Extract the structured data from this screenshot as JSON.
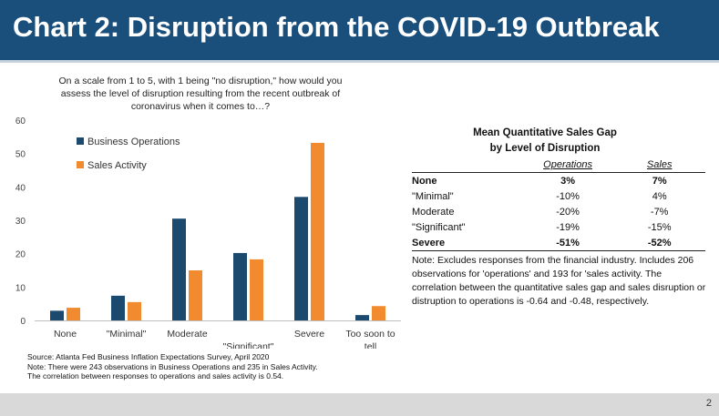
{
  "header": {
    "title": "Chart 2: Disruption from the COVID-19 Outbreak"
  },
  "colors": {
    "banner": "#1a4f7c",
    "operations": "#1b4a6e",
    "sales": "#f28b30"
  },
  "chart_data": {
    "type": "bar",
    "title": "On a scale from 1 to 5, with 1 being \"no disruption,\" how would you assess the level of disruption resulting from the recent outbreak of coronavirus when it comes to…?",
    "categories": [
      "None",
      "\"Minimal\"",
      "Moderate",
      "\"Significant\"",
      "Severe",
      "Too soon to tell"
    ],
    "series": [
      {
        "name": "Business Operations",
        "values": [
          2.9,
          7.4,
          30.5,
          20.2,
          37.0,
          1.6
        ]
      },
      {
        "name": "Sales Activity",
        "values": [
          3.8,
          5.5,
          15.0,
          18.3,
          53.2,
          4.3
        ]
      }
    ],
    "ylim": [
      0,
      60
    ],
    "yticks": [
      0,
      10,
      20,
      30,
      40,
      50,
      60
    ],
    "grid": false,
    "legend": "top-left"
  },
  "notes": {
    "source": "Source: Atlanta Fed Business Inflation Expectations Survey, April 2020",
    "note1": "Note: There were 243 observations in Business Operations and 235 in Sales Activity.",
    "note2": "The correlation between responses to operations and sales activity is 0.54."
  },
  "table": {
    "title_line1": "Mean Quantitative Sales Gap",
    "title_line2": "by Level of Disruption",
    "col_operations": "Operations",
    "col_sales": "Sales",
    "rows": [
      {
        "label": "None",
        "operations": "3%",
        "sales": "7%"
      },
      {
        "label": "\"Minimal\"",
        "operations": "-10%",
        "sales": "4%"
      },
      {
        "label": "Moderate",
        "operations": "-20%",
        "sales": "-7%"
      },
      {
        "label": "\"Significant\"",
        "operations": "-19%",
        "sales": "-15%"
      },
      {
        "label": "Severe",
        "operations": "-51%",
        "sales": "-52%"
      }
    ],
    "note": "Note: Excludes responses from the financial industry. Includes 206 observations for 'operations' and 193 for 'sales activity. The correlation between the quantitative sales gap and sales disruption or distruption to operations is -0.64 and -0.48, respectively."
  },
  "footer": {
    "page_number": "2"
  }
}
